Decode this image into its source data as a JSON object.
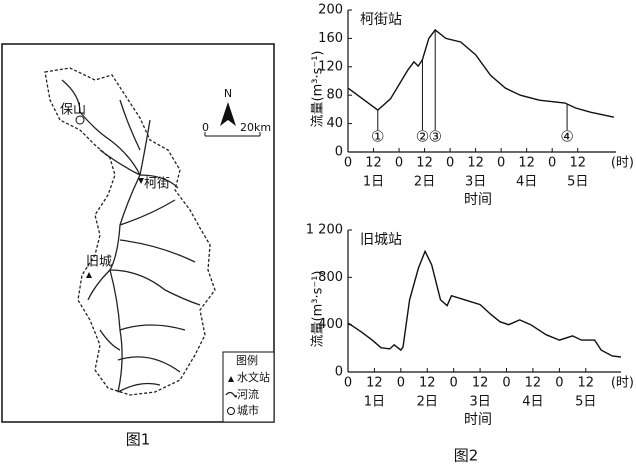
{
  "map": {
    "city": "保山",
    "station_1": "柯街",
    "station_2": "旧城",
    "north": "N",
    "scale_start": "0",
    "scale_end": "20km",
    "legend_title": "图例",
    "legend_station": "水文站",
    "legend_river": "河流",
    "legend_city": "城市"
  },
  "captions": [
    "图1",
    "图2"
  ],
  "chart_data": [
    {
      "type": "line",
      "title": "柯街站",
      "y_label": "流量(m³·s⁻¹)",
      "x_label": "时间",
      "x_unit": "(时)",
      "color": "#111",
      "day_labels": [
        "1日",
        "2日",
        "3日",
        "4日",
        "5日"
      ],
      "x": [
        0,
        14,
        20,
        28,
        31,
        33,
        35,
        38,
        41,
        46,
        53,
        60,
        67,
        74,
        81,
        90,
        102,
        107,
        114,
        125
      ],
      "values": [
        90,
        59,
        75,
        115,
        127,
        121,
        130,
        160,
        172,
        160,
        155,
        137,
        108,
        90,
        80,
        73,
        69,
        62,
        56,
        49
      ],
      "xlim": [
        0,
        126
      ],
      "ylim": [
        0,
        200
      ],
      "xticks": [
        0,
        12,
        {
          "value": 24,
          "label": "0"
        },
        {
          "value": 36,
          "label": "12"
        },
        {
          "value": 48,
          "label": "0"
        },
        {
          "value": 60,
          "label": "12"
        },
        {
          "value": 72,
          "label": "0"
        },
        {
          "value": 84,
          "label": "12"
        },
        {
          "value": 96,
          "label": "0"
        },
        {
          "value": 108,
          "label": "12"
        }
      ],
      "yticks": [
        0,
        40,
        80,
        120,
        160,
        200
      ],
      "annotations": [
        {
          "x": 14,
          "label": "①"
        },
        {
          "x": 35,
          "label": "②"
        },
        {
          "x": 41,
          "label": "③"
        },
        {
          "x": 103,
          "label": "④"
        }
      ]
    },
    {
      "type": "line",
      "title": "旧城站",
      "y_label": "流量(m³·s⁻¹)",
      "x_label": "时间",
      "x_unit": "(时)",
      "color": "#111",
      "day_labels": [
        "1日",
        "2日",
        "3日",
        "4日",
        "5日"
      ],
      "x": [
        0,
        6,
        11,
        15,
        19,
        21,
        24,
        25,
        28,
        32,
        35,
        38,
        42,
        45,
        47,
        53,
        60,
        65,
        69,
        73,
        78,
        83,
        90,
        96,
        102,
        106,
        112,
        115,
        120,
        124
      ],
      "values": [
        415,
        340,
        270,
        205,
        195,
        230,
        185,
        210,
        610,
        880,
        1020,
        905,
        610,
        560,
        645,
        610,
        570,
        485,
        425,
        400,
        440,
        400,
        315,
        270,
        305,
        270,
        270,
        185,
        135,
        127
      ],
      "xlim": [
        0,
        124
      ],
      "ylim": [
        0,
        1200
      ],
      "xticks": [
        0,
        12,
        {
          "value": 24,
          "label": "0"
        },
        {
          "value": 36,
          "label": "12"
        },
        {
          "value": 48,
          "label": "0"
        },
        {
          "value": 60,
          "label": "12"
        },
        {
          "value": 72,
          "label": "0"
        },
        {
          "value": 84,
          "label": "12"
        },
        {
          "value": 96,
          "label": "0"
        },
        {
          "value": 108,
          "label": "12"
        }
      ],
      "yticks": [
        0,
        400,
        800,
        {
          "value": 1200,
          "label": "1 200"
        }
      ]
    }
  ]
}
